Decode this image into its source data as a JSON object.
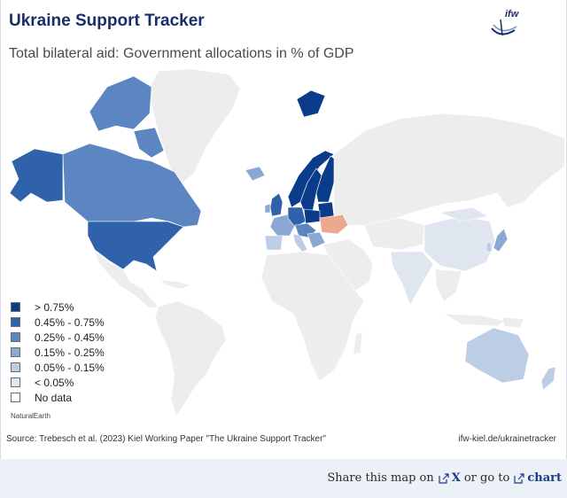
{
  "header": {
    "title": "Ukraine Support Tracker",
    "subtitle": "Total bilateral aid: Government allocations in % of GDP",
    "logo_text": "ifw"
  },
  "colors": {
    "cat0": "#0b3c8c",
    "cat1": "#2f62ab",
    "cat2": "#5b86c1",
    "cat3": "#8aa8d3",
    "cat4": "#bccde6",
    "cat5": "#e0e6ef",
    "nodata": "#ededed",
    "ukraine": "#eca98f",
    "title": "#1a2e6b"
  },
  "legend": [
    {
      "label": "> 0.75%",
      "color": "#0b3c8c"
    },
    {
      "label": "0.45% - 0.75%",
      "color": "#2f62ab"
    },
    {
      "label": "0.25% - 0.45%",
      "color": "#5b86c1"
    },
    {
      "label": "0.15% - 0.25%",
      "color": "#8aa8d3"
    },
    {
      "label": "0.05% - 0.15%",
      "color": "#bccde6"
    },
    {
      "label": "< 0.05%",
      "color": "#e0e6ef"
    },
    {
      "label": "No data",
      "color": "#ffffff"
    }
  ],
  "credit": "NaturalEarth",
  "source": "Source: Trebesch et al. (2023) Kiel Working Paper \"The Ukraine Support Tracker\"",
  "url": "ifw-kiel.de/ukrainetracker",
  "share": {
    "prefix": "Share this map on",
    "x_label": "X",
    "middle": "or go to",
    "chart_label": "chart",
    "icon": "external-link-icon"
  }
}
